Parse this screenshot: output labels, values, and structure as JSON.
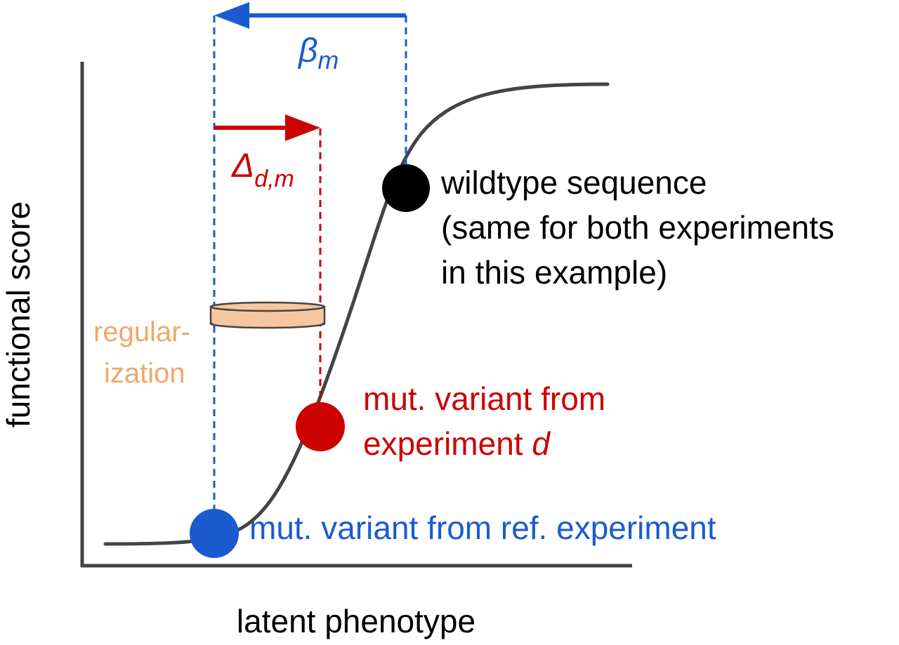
{
  "axes": {
    "x_label": "latent phenotype",
    "y_label": "functional score"
  },
  "beta": {
    "symbol": "β",
    "subscript": "m"
  },
  "delta": {
    "symbol": "Δ",
    "subscript": "d,m"
  },
  "regularization": {
    "line1": "regular-",
    "line2": "ization"
  },
  "wildtype": {
    "line1": "wildtype sequence",
    "line2": "(same for both experiments",
    "line3": "in this example)"
  },
  "mut_d": {
    "line1": "mut. variant from",
    "line2_prefix": "experiment ",
    "line2_italic": "d"
  },
  "mut_ref": {
    "text": "mut. variant from ref. experiment"
  },
  "colors": {
    "blue": "#1a5bd1",
    "red": "#cc0000",
    "orange": "#f0a868",
    "orange_fill": "#f6c79e",
    "curve": "#444444",
    "black": "#000000"
  }
}
